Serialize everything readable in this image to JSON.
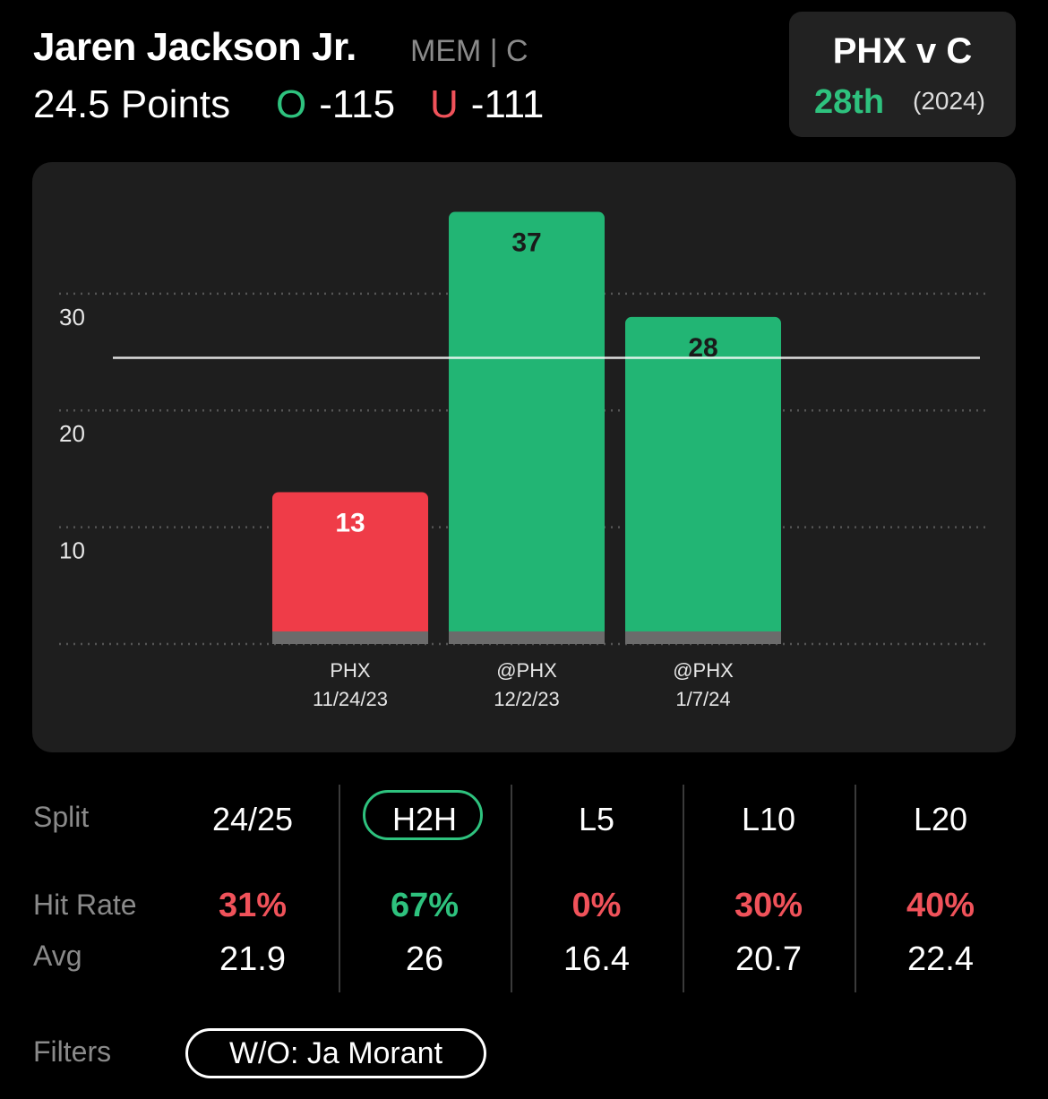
{
  "player": {
    "name": "Jaren Jackson Jr.",
    "meta": "MEM | C",
    "prop_line": "24.5 Points",
    "over_symbol": "O",
    "over_odds": "-115",
    "under_symbol": "U",
    "under_odds": "-111"
  },
  "matchup": {
    "title": "PHX v C",
    "rank": "28th",
    "year": "(2024)"
  },
  "chart_data": {
    "type": "bar",
    "categories": [
      "PHX\n11/24/23",
      "@PHX\n12/2/23",
      "@PHX\n1/7/24"
    ],
    "category_lines": [
      [
        "PHX",
        "11/24/23"
      ],
      [
        "@PHX",
        "12/2/23"
      ],
      [
        "@PHX",
        "1/7/24"
      ]
    ],
    "values": [
      13,
      37,
      28
    ],
    "bar_colors": [
      "#ef3c48",
      "#22b574",
      "#22b574"
    ],
    "label_colors": [
      "#ffffff",
      "#1a1a1a",
      "#1a1a1a"
    ],
    "line_value": 24.5,
    "yticks": [
      10,
      20,
      30
    ],
    "ylim": [
      0,
      38.5
    ],
    "grid": true
  },
  "splits": {
    "row_labels": {
      "split": "Split",
      "hit_rate": "Hit Rate",
      "avg": "Avg"
    },
    "columns": [
      {
        "name": "24/25",
        "hit": "31%",
        "hit_color": "red",
        "avg": "21.9"
      },
      {
        "name": "H2H",
        "hit": "67%",
        "hit_color": "green",
        "avg": "26",
        "selected": true
      },
      {
        "name": "L5",
        "hit": "0%",
        "hit_color": "red",
        "avg": "16.4"
      },
      {
        "name": "L10",
        "hit": "30%",
        "hit_color": "red",
        "avg": "20.7"
      },
      {
        "name": "L20",
        "hit": "40%",
        "hit_color": "red",
        "avg": "22.4"
      }
    ]
  },
  "filters": {
    "label": "Filters",
    "active": "W/O: Ja Morant"
  },
  "colors": {
    "green": "#2ec27e",
    "red": "#f0525a",
    "card_bg": "#1e1e1e"
  }
}
